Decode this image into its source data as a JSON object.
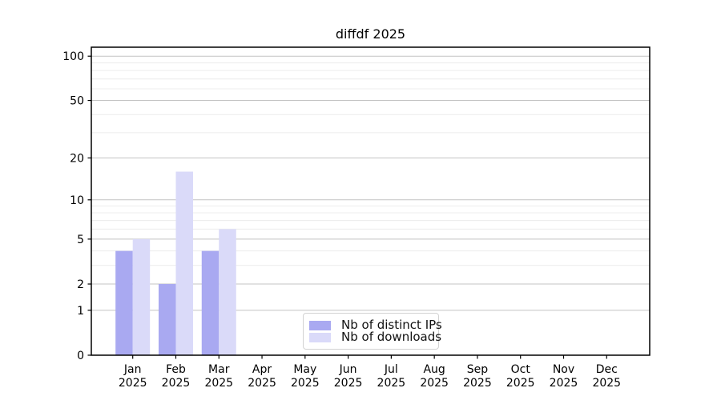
{
  "chart_data": {
    "type": "bar",
    "title": "diffdf 2025",
    "categories": [
      "Jan",
      "Feb",
      "Mar",
      "Apr",
      "May",
      "Jun",
      "Jul",
      "Aug",
      "Sep",
      "Oct",
      "Nov",
      "Dec"
    ],
    "year_label": "2025",
    "series": [
      {
        "name": "Nb of distinct IPs",
        "color": "#a9a9f1",
        "values": [
          4,
          2,
          4,
          0,
          0,
          0,
          0,
          0,
          0,
          0,
          0,
          0
        ]
      },
      {
        "name": "Nb of downloads",
        "color": "#dadaf9",
        "values": [
          5,
          16,
          6,
          0,
          0,
          0,
          0,
          0,
          0,
          0,
          0,
          0
        ]
      }
    ],
    "yscale": "log1p",
    "ylim": [
      0,
      115
    ],
    "yticks": [
      0,
      1,
      2,
      5,
      10,
      20,
      50,
      100
    ],
    "yticks_minor": [
      3,
      4,
      6,
      7,
      8,
      9,
      30,
      40,
      60,
      70,
      80,
      90
    ],
    "grid": "horizontal",
    "legend_position": "lower-center-inside"
  }
}
